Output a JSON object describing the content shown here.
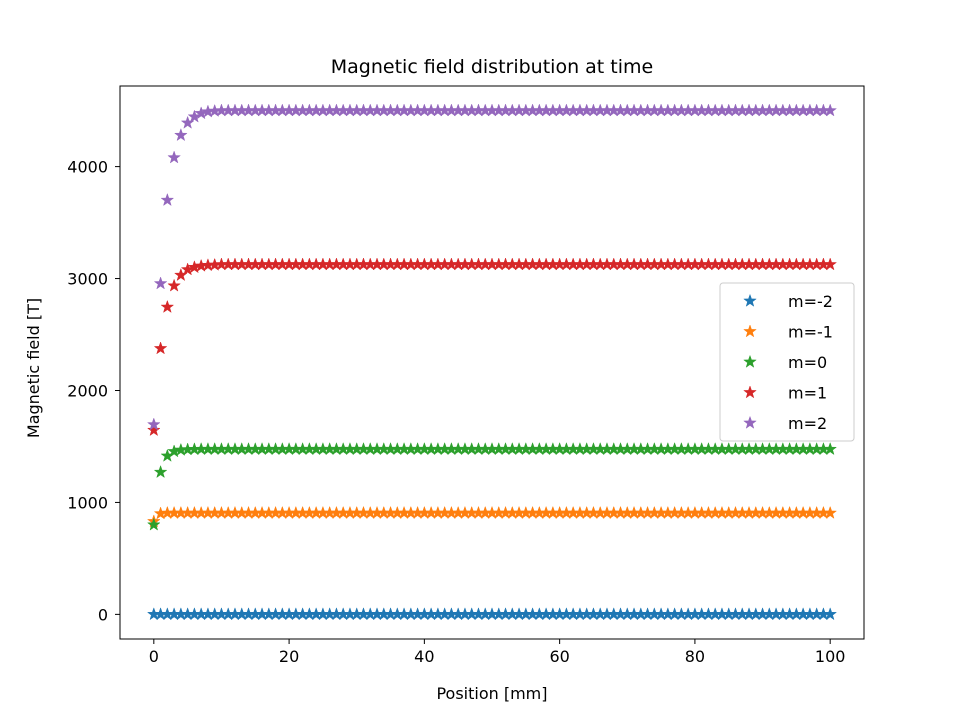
{
  "chart_data": {
    "type": "scatter",
    "title": "Magnetic field distribution at time",
    "xlabel": "Position [mm]",
    "ylabel": "Magnetic field [T]",
    "xlim": [
      -5,
      105
    ],
    "ylim": [
      -220,
      4720
    ],
    "xticks": [
      0,
      20,
      40,
      60,
      80,
      100
    ],
    "yticks": [
      0,
      1000,
      2000,
      3000,
      4000
    ],
    "grid": false,
    "legend_position": "center-right",
    "marker": "star",
    "x": {
      "start": 0,
      "end": 100,
      "step": 1
    },
    "series": [
      {
        "name": "m=-2",
        "color": "#1f77b4",
        "initial": [
          0,
          0,
          0,
          0,
          0,
          0,
          0,
          0,
          0,
          0
        ],
        "steady": 0
      },
      {
        "name": "m=-1",
        "color": "#ff7f0e",
        "initial": [
          830,
          900,
          905,
          905,
          905,
          905,
          905,
          905,
          905,
          905
        ],
        "steady": 905
      },
      {
        "name": "m=0",
        "color": "#2ca02c",
        "initial": [
          800,
          1270,
          1415,
          1455,
          1468,
          1472,
          1474,
          1475,
          1475,
          1475
        ],
        "steady": 1475
      },
      {
        "name": "m=1",
        "color": "#d62728",
        "initial": [
          1645,
          2375,
          2745,
          2935,
          3030,
          3080,
          3100,
          3112,
          3118,
          3121
        ],
        "steady": 3125
      },
      {
        "name": "m=2",
        "color": "#9467bd",
        "initial": [
          1695,
          2955,
          3700,
          4080,
          4280,
          4390,
          4445,
          4475,
          4490,
          4496
        ],
        "steady": 4500
      }
    ]
  }
}
